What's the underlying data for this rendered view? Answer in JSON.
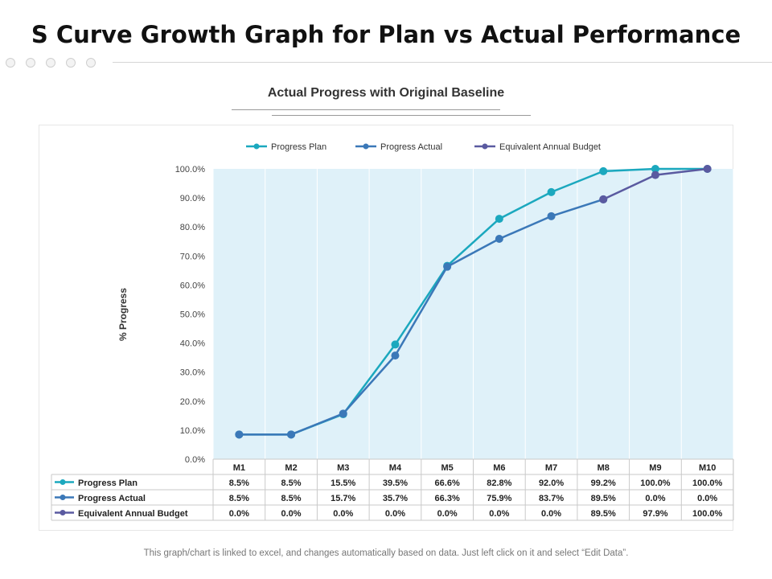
{
  "slide_title": "S Curve Growth Graph for Plan vs Actual Performance",
  "footnote": "This graph/chart is linked to excel, and changes automatically based on data. Just left click on it and select “Edit Data”.",
  "colors": {
    "plan": "#1ba8be",
    "actual": "#3b78b8",
    "budget": "#5a5aa0",
    "plot_bg": "#dff1f9"
  },
  "chart_data": {
    "type": "line",
    "title": "Actual Progress with Original Baseline",
    "ylabel": "% Progress",
    "xlabel": "",
    "ylim": [
      0,
      100
    ],
    "yticks": [
      "0.0%",
      "10.0%",
      "20.0%",
      "30.0%",
      "40.0%",
      "50.0%",
      "60.0%",
      "70.0%",
      "80.0%",
      "90.0%",
      "100.0%"
    ],
    "categories": [
      "M1",
      "M2",
      "M3",
      "M4",
      "M5",
      "M6",
      "M7",
      "M8",
      "M9",
      "M10"
    ],
    "legend_position": "top",
    "series": [
      {
        "name": "Progress Plan",
        "color": "#1ba8be",
        "values": [
          8.5,
          8.5,
          15.5,
          39.5,
          66.6,
          82.8,
          92.0,
          99.2,
          100.0,
          100.0
        ],
        "labels": [
          "8.5%",
          "8.5%",
          "15.5%",
          "39.5%",
          "66.6%",
          "82.8%",
          "92.0%",
          "99.2%",
          "100.0%",
          "100.0%"
        ]
      },
      {
        "name": "Progress Actual",
        "color": "#3b78b8",
        "values": [
          8.5,
          8.5,
          15.7,
          35.7,
          66.3,
          75.9,
          83.7,
          89.5,
          0.0,
          0.0
        ],
        "labels": [
          "8.5%",
          "8.5%",
          "15.7%",
          "35.7%",
          "66.3%",
          "75.9%",
          "83.7%",
          "89.5%",
          "0.0%",
          "0.0%"
        ]
      },
      {
        "name": "Equivalent Annual Budget",
        "color": "#5a5aa0",
        "values": [
          0.0,
          0.0,
          0.0,
          0.0,
          0.0,
          0.0,
          0.0,
          89.5,
          97.9,
          100.0
        ],
        "labels": [
          "0.0%",
          "0.0%",
          "0.0%",
          "0.0%",
          "0.0%",
          "0.0%",
          "0.0%",
          "89.5%",
          "97.9%",
          "100.0%"
        ]
      }
    ]
  }
}
